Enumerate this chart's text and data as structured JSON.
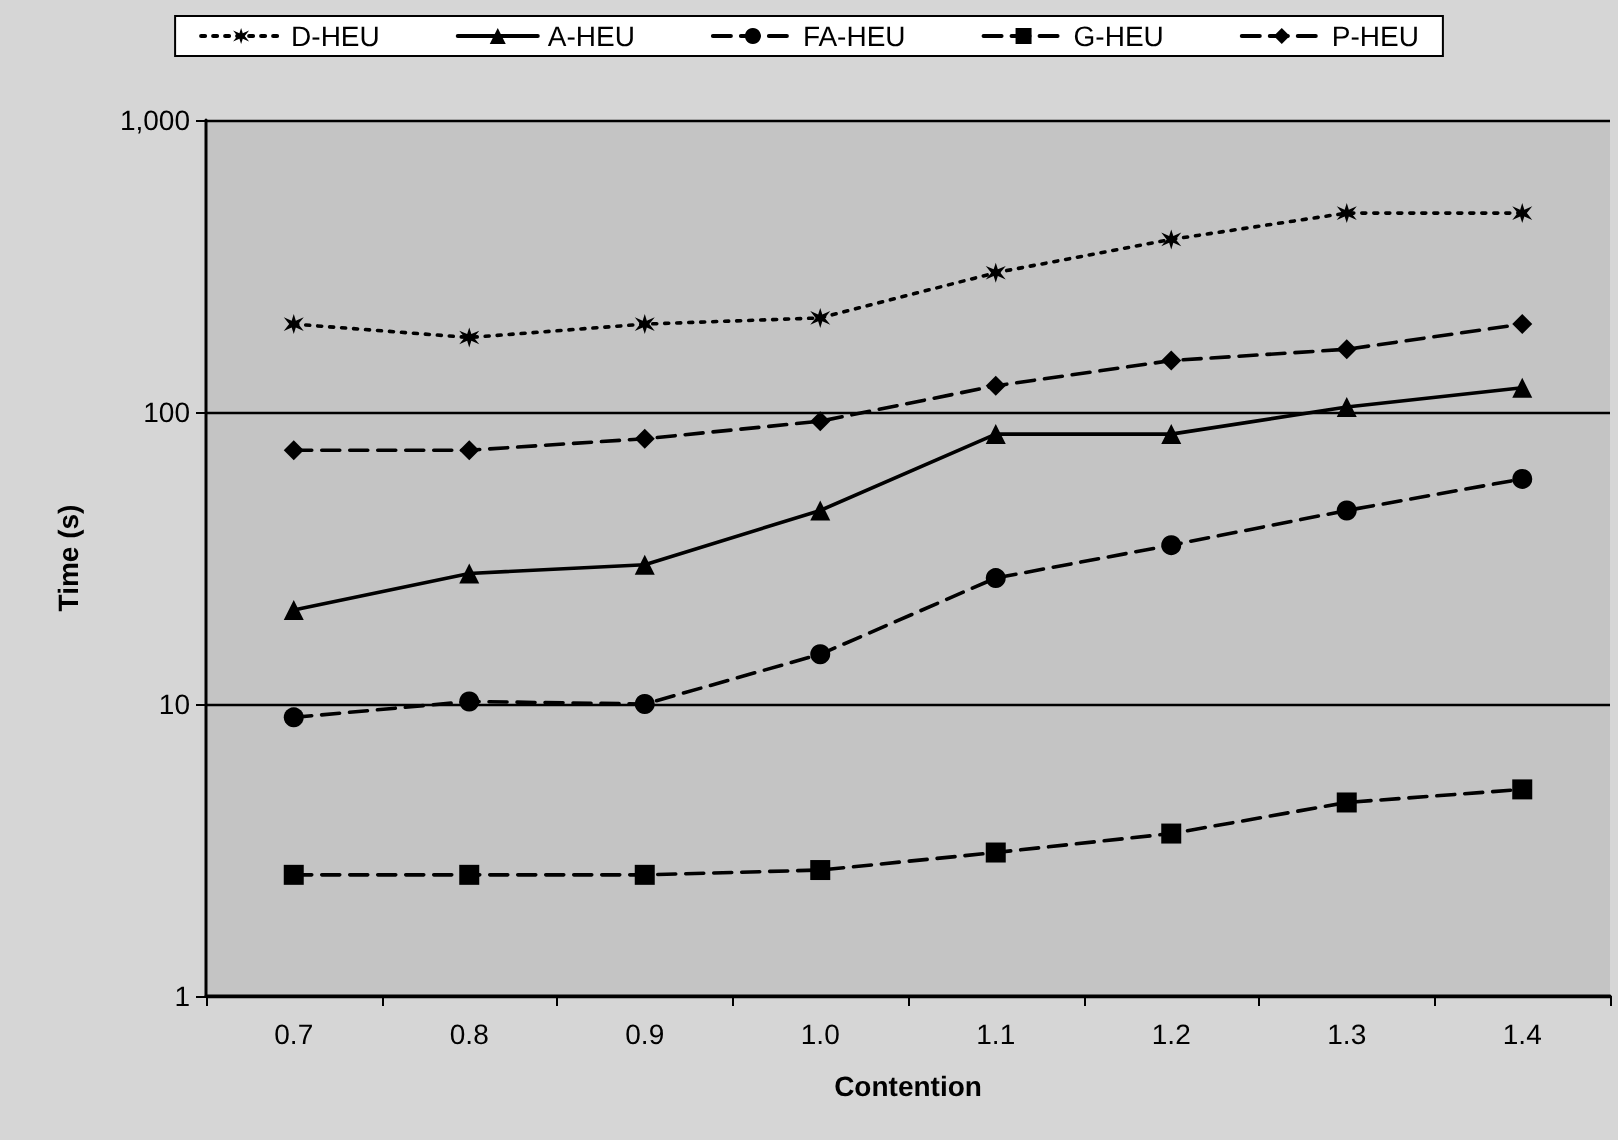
{
  "chart_data": {
    "type": "line",
    "xlabel": "Contention",
    "ylabel": "Time (s)",
    "categories": [
      "0.7",
      "0.8",
      "0.9",
      "1.0",
      "1.1",
      "1.2",
      "1.3",
      "1.4"
    ],
    "series": [
      {
        "name": "D-HEU",
        "color": "#000000",
        "marker": "cross",
        "line_style": "dotted",
        "values": [
          200,
          180,
          200,
          210,
          300,
          390,
          480,
          480
        ]
      },
      {
        "name": "A-HEU",
        "color": "#000000",
        "marker": "triangle",
        "line_style": "solid",
        "values": [
          21,
          28,
          30,
          46,
          84,
          84,
          104,
          121
        ]
      },
      {
        "name": "FA-HEU",
        "color": "#000000",
        "marker": "circle",
        "line_style": "dashed",
        "values": [
          9,
          10.2,
          10,
          14.8,
          27,
          35,
          46,
          59
        ]
      },
      {
        "name": "G-HEU",
        "color": "#000000",
        "marker": "square",
        "line_style": "dashed",
        "values": [
          2.6,
          2.6,
          2.6,
          2.7,
          3.1,
          3.6,
          4.6,
          5.1
        ]
      },
      {
        "name": "P-HEU",
        "color": "#000000",
        "marker": "diamond",
        "line_style": "dashed",
        "values": [
          74,
          74,
          81,
          93,
          123,
          150,
          164,
          200
        ]
      }
    ],
    "log": "y",
    "ylim": [
      1,
      1000
    ],
    "yticks": [
      1,
      10,
      100,
      {
        "value": 1000,
        "label": "1,000"
      }
    ],
    "grid": "y",
    "legend": "top"
  }
}
